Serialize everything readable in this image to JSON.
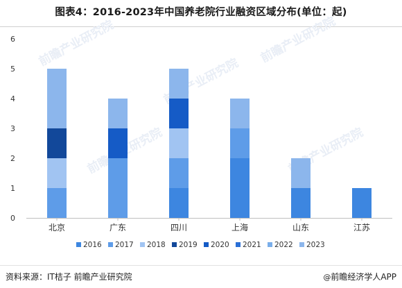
{
  "title": "图表4：2016-2023年中国养老院行业融资区域分布(单位：起)",
  "footer": {
    "source": "资料来源：IT桔子 前瞻产业研究院",
    "brand": "前瞻经济学人APP",
    "brand_icon": "at-icon"
  },
  "watermark_text": "前瞻产业研究院",
  "chart_data": {
    "type": "bar",
    "stacked": true,
    "title": "图表4：2016-2023年中国养老院行业融资区域分布(单位：起)",
    "xlabel": "",
    "ylabel": "",
    "ylim": [
      0,
      6
    ],
    "yticks": [
      0,
      1,
      2,
      3,
      4,
      5,
      6
    ],
    "grid": false,
    "legend_position": "bottom",
    "categories": [
      "北京",
      "广东",
      "四川",
      "上海",
      "山东",
      "江苏"
    ],
    "series": [
      {
        "name": "2016",
        "color": "#3d86e0",
        "values": [
          0,
          0,
          1,
          2,
          1,
          1
        ]
      },
      {
        "name": "2017",
        "color": "#5e9ce8",
        "values": [
          1,
          2,
          1,
          1,
          0,
          0
        ]
      },
      {
        "name": "2018",
        "color": "#a1c4f2",
        "values": [
          1,
          0,
          1,
          0,
          0,
          0
        ]
      },
      {
        "name": "2019",
        "color": "#12489a",
        "values": [
          1,
          0,
          0,
          0,
          0,
          0
        ]
      },
      {
        "name": "2020",
        "color": "#155bc6",
        "values": [
          0,
          1,
          1,
          0,
          0,
          0
        ]
      },
      {
        "name": "2021",
        "color": "#2a6fd6",
        "values": [
          0,
          0,
          0,
          0,
          0,
          0
        ]
      },
      {
        "name": "2022",
        "color": "#7aaeea",
        "values": [
          0,
          0,
          0,
          0,
          0,
          0
        ]
      },
      {
        "name": "2023",
        "color": "#8cb6ec",
        "values": [
          2,
          1,
          1,
          1,
          1,
          0
        ]
      }
    ]
  }
}
